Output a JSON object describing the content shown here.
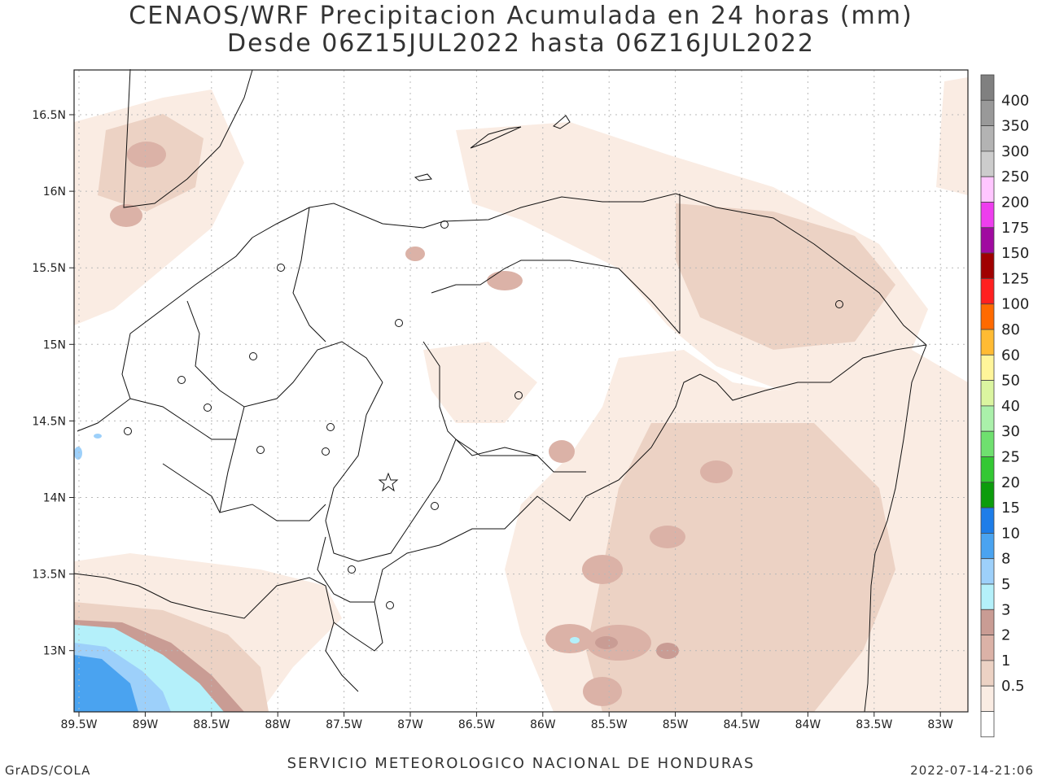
{
  "title_line1": "CENAOS/WRF Precipitacion Acumulada en 24 horas (mm)",
  "title_line2": "Desde 06Z15JUL2022 hasta 06Z16JUL2022",
  "x_ticks": [
    "89.5W",
    "89W",
    "88.5W",
    "88W",
    "87.5W",
    "87W",
    "86.5W",
    "86W",
    "85.5W",
    "85W",
    "84.5W",
    "84W",
    "83.5W",
    "83W"
  ],
  "y_ticks": [
    "16.5N",
    "16N",
    "15.5N",
    "15N",
    "14.5N",
    "14N",
    "13.5N",
    "13N"
  ],
  "colorbar": {
    "levels": [
      "400",
      "350",
      "300",
      "250",
      "200",
      "175",
      "150",
      "125",
      "100",
      "80",
      "60",
      "50",
      "40",
      "30",
      "25",
      "20",
      "15",
      "10",
      "8",
      "5",
      "3",
      "2",
      "1",
      "0.5"
    ],
    "colors": [
      "#808080",
      "#999999",
      "#b3b3b3",
      "#cccccc",
      "#ffc6ff",
      "#ee3eee",
      "#a00aa0",
      "#a00000",
      "#ff2020",
      "#ff6a00",
      "#ffbb33",
      "#fff59a",
      "#dbf5a0",
      "#aaf0aa",
      "#6fe06f",
      "#33c833",
      "#0c9c0c",
      "#1e7de8",
      "#4aa3f0",
      "#9dd0fa",
      "#b4f0fa",
      "#c99c94",
      "#dbb2a7",
      "#ecd2c4",
      "#faece3",
      "#ffffff"
    ]
  },
  "footer_left": "GrADS/COLA",
  "footer_center": "SERVICIO METEOROLOGICO NACIONAL DE HONDURAS",
  "footer_right": "2022-07-14-21:06"
}
